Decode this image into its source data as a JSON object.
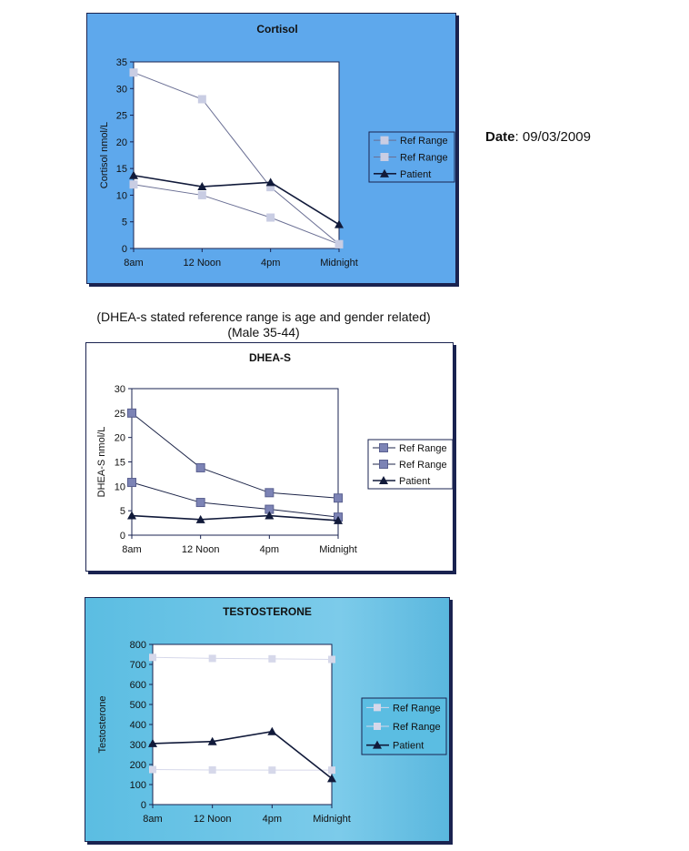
{
  "date": {
    "label": "Date",
    "value": ": 09/03/2009"
  },
  "caption": {
    "line1": "(DHEA-s stated reference range is age and gender related)",
    "line2": "(Male 35-44)"
  },
  "colors": {
    "cortisol_bg": "#5ea8ec",
    "testosterone_bg": "#5bbde2",
    "cortisol_ref": "#c9cde3",
    "dhea_ref": "#7c83b5",
    "testosterone_ref": "#d6d8ea",
    "patient": "#111a3a"
  },
  "chart_data": [
    {
      "type": "line",
      "title": "Cortisol",
      "xlabel": "",
      "ylabel": "Cortisol nmol/L",
      "categories": [
        "8am",
        "12 Noon",
        "4pm",
        "Midnight"
      ],
      "ylim": [
        0,
        35
      ],
      "yticks": [
        0,
        5,
        10,
        15,
        20,
        25,
        30,
        35
      ],
      "legend": "right",
      "series": [
        {
          "name": "Ref Range",
          "marker": "square",
          "values": [
            33,
            28,
            11.5,
            0.8
          ]
        },
        {
          "name": "Ref Range",
          "marker": "square",
          "values": [
            12,
            10,
            5.8,
            0.8
          ]
        },
        {
          "name": "Patient",
          "marker": "triangle",
          "values": [
            13.7,
            11.6,
            12.4,
            4.5
          ]
        }
      ]
    },
    {
      "type": "line",
      "title": "DHEA-S",
      "xlabel": "",
      "ylabel": "DHEA-S nmol/L",
      "categories": [
        "8am",
        "12 Noon",
        "4pm",
        "Midnight"
      ],
      "ylim": [
        0,
        30
      ],
      "yticks": [
        0,
        5,
        10,
        15,
        20,
        25,
        30
      ],
      "legend": "right",
      "series": [
        {
          "name": "Ref Range",
          "marker": "square",
          "values": [
            25,
            13.8,
            8.7,
            7.6
          ]
        },
        {
          "name": "Ref Range",
          "marker": "square",
          "values": [
            10.8,
            6.7,
            5.3,
            3.7
          ]
        },
        {
          "name": "Patient",
          "marker": "triangle",
          "values": [
            4,
            3.2,
            4,
            3
          ]
        }
      ]
    },
    {
      "type": "line",
      "title": "TESTOSTERONE",
      "xlabel": "",
      "ylabel": "Testosterone",
      "categories": [
        "8am",
        "12 Noon",
        "4pm",
        "Midnight"
      ],
      "ylim": [
        0,
        800
      ],
      "yticks": [
        0,
        100,
        200,
        300,
        400,
        500,
        600,
        700,
        800
      ],
      "legend": "right",
      "series": [
        {
          "name": "Ref Range",
          "marker": "square",
          "values": [
            735,
            730,
            728,
            725
          ]
        },
        {
          "name": "Ref Range",
          "marker": "square",
          "values": [
            175,
            173,
            172,
            172
          ]
        },
        {
          "name": "Patient",
          "marker": "triangle",
          "values": [
            305,
            315,
            365,
            130
          ]
        }
      ]
    }
  ]
}
